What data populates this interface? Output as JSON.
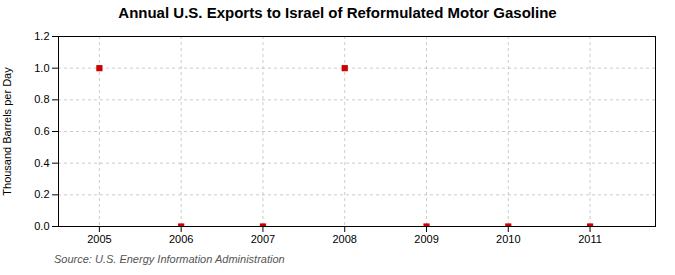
{
  "chart_data": {
    "type": "scatter",
    "title": "Annual U.S. Exports to Israel of Reformulated Motor Gasoline",
    "ylabel": "Thousand Barrels per Day",
    "source": "Source: U.S. Energy Information Administration",
    "x": [
      2005,
      2006,
      2007,
      2008,
      2009,
      2010,
      2011
    ],
    "values": [
      1.0,
      0.0,
      0.0,
      1.0,
      0.0,
      0.0,
      0.0
    ],
    "color": "#cc0000",
    "marker": "square",
    "xlim": [
      2004.5,
      2011.8
    ],
    "xticks": [
      2005,
      2006,
      2007,
      2008,
      2009,
      2010,
      2011
    ],
    "ylim": [
      0.0,
      1.2
    ],
    "yticks": [
      {
        "value": 0.0,
        "label": "0.0"
      },
      {
        "value": 0.2,
        "label": "0.2"
      },
      {
        "value": 0.4,
        "label": "0.4"
      },
      {
        "value": 0.6,
        "label": "0.6"
      },
      {
        "value": 0.8,
        "label": "0.8"
      },
      {
        "value": 1.0,
        "label": "1.0"
      },
      {
        "value": 1.2,
        "label": "1.2"
      }
    ],
    "grid": true
  }
}
